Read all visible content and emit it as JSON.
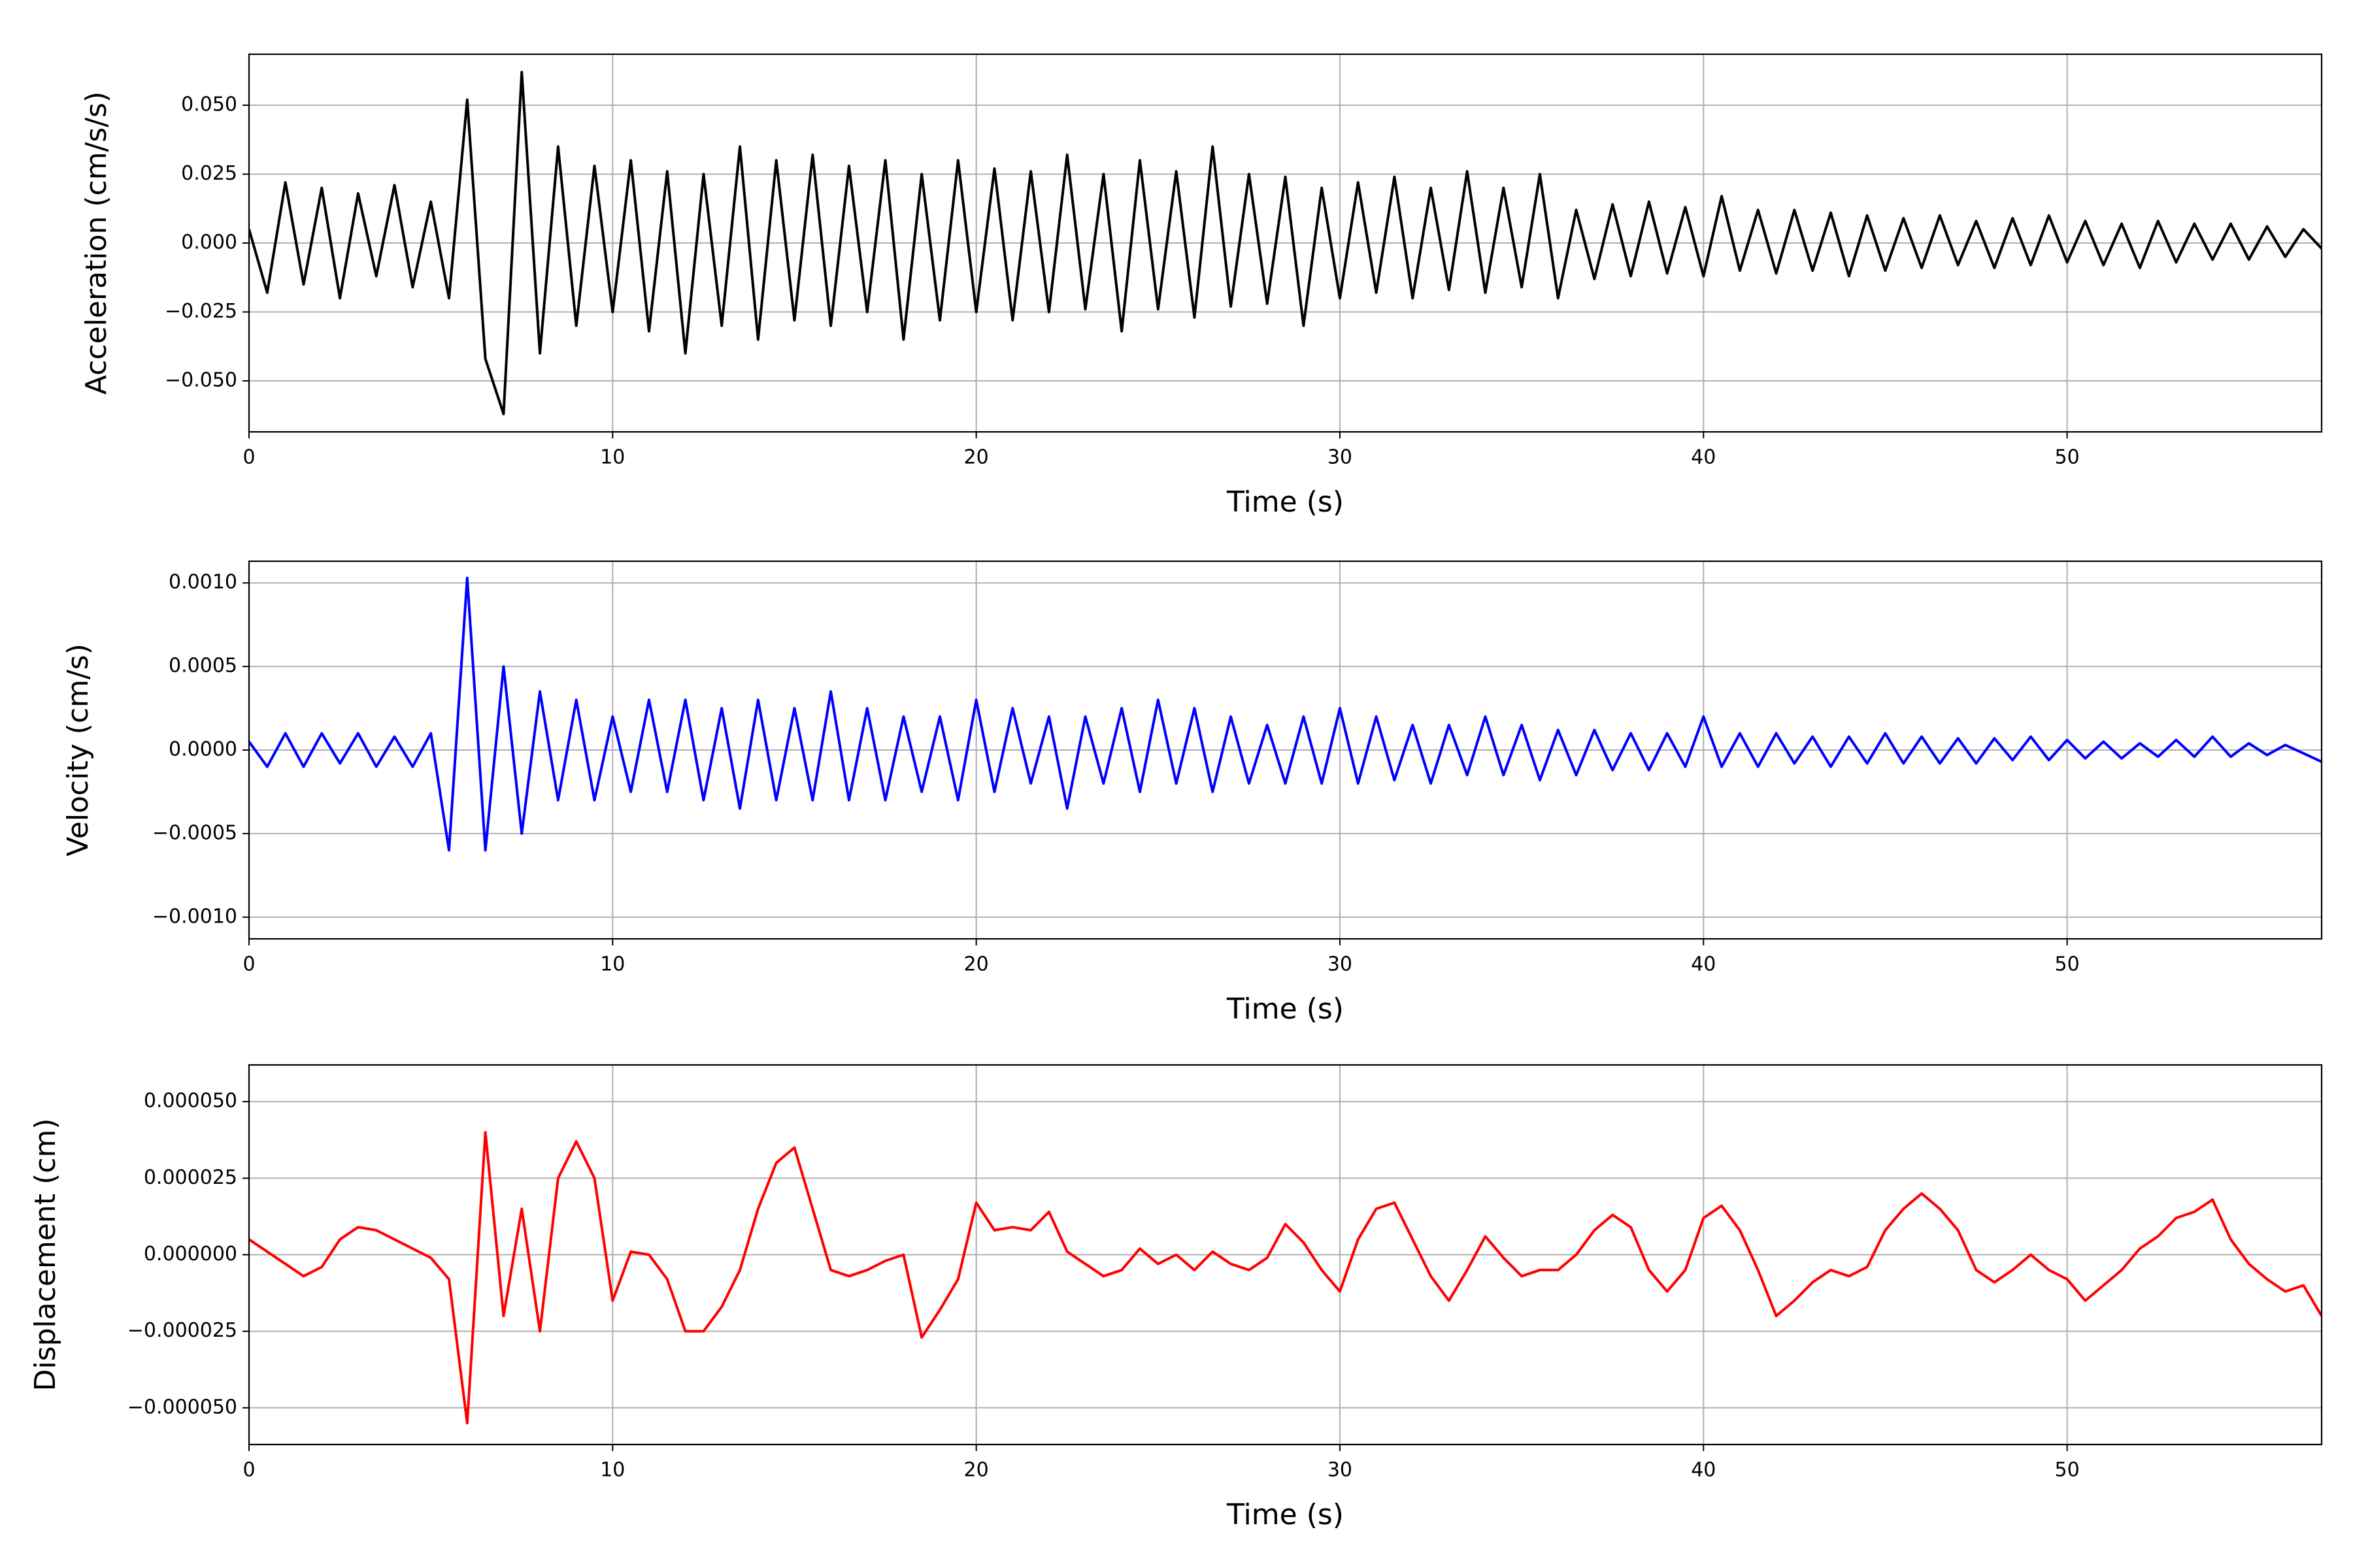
{
  "chart_data": [
    {
      "type": "line",
      "xlabel": "Time (s)",
      "ylabel": "Acceleration (cm/s/s)",
      "color": "#000000",
      "grid": true,
      "xlim": [
        0,
        57
      ],
      "ylim": [
        -0.0685,
        0.0685
      ],
      "xticks": [
        0,
        10,
        20,
        30,
        40,
        50
      ],
      "yticks": [
        {
          "value": -0.05,
          "label": "−0.050"
        },
        {
          "value": -0.025,
          "label": "−0.025"
        },
        {
          "value": 0,
          "label": "0.000"
        },
        {
          "value": 0.025,
          "label": "0.025"
        },
        {
          "value": 0.05,
          "label": "0.050"
        }
      ],
      "x": [
        0,
        0.5,
        1,
        1.5,
        2,
        2.5,
        3,
        3.5,
        4,
        4.5,
        5,
        5.5,
        6,
        6.5,
        7,
        7.5,
        8,
        8.5,
        9,
        9.5,
        10,
        10.5,
        11,
        11.5,
        12,
        12.5,
        13,
        13.5,
        14,
        14.5,
        15,
        15.5,
        16,
        16.5,
        17,
        17.5,
        18,
        18.5,
        19,
        19.5,
        20,
        20.5,
        21,
        21.5,
        22,
        22.5,
        23,
        23.5,
        24,
        24.5,
        25,
        25.5,
        26,
        26.5,
        27,
        27.5,
        28,
        28.5,
        29,
        29.5,
        30,
        30.5,
        31,
        31.5,
        32,
        32.5,
        33,
        33.5,
        34,
        34.5,
        35,
        35.5,
        36,
        36.5,
        37,
        37.5,
        38,
        38.5,
        39,
        39.5,
        40,
        40.5,
        41,
        41.5,
        42,
        42.5,
        43,
        43.5,
        44,
        44.5,
        45,
        45.5,
        46,
        46.5,
        47,
        47.5,
        48,
        48.5,
        49,
        49.5,
        50,
        50.5,
        51,
        51.5,
        52,
        52.5,
        53,
        53.5,
        54,
        54.5,
        55,
        55.5,
        56,
        56.5,
        57
      ],
      "values": [
        0.005,
        -0.018,
        0.022,
        -0.015,
        0.02,
        -0.02,
        0.018,
        -0.012,
        0.021,
        -0.016,
        0.015,
        -0.02,
        0.052,
        -0.042,
        -0.062,
        0.062,
        -0.04,
        0.035,
        -0.03,
        0.028,
        -0.025,
        0.03,
        -0.032,
        0.026,
        -0.04,
        0.025,
        -0.03,
        0.035,
        -0.035,
        0.03,
        -0.028,
        0.032,
        -0.03,
        0.028,
        -0.025,
        0.03,
        -0.035,
        0.025,
        -0.028,
        0.03,
        -0.025,
        0.027,
        -0.028,
        0.026,
        -0.025,
        0.032,
        -0.024,
        0.025,
        -0.032,
        0.03,
        -0.024,
        0.026,
        -0.027,
        0.035,
        -0.023,
        0.025,
        -0.022,
        0.024,
        -0.03,
        0.02,
        -0.02,
        0.022,
        -0.018,
        0.024,
        -0.02,
        0.02,
        -0.017,
        0.026,
        -0.018,
        0.02,
        -0.016,
        0.025,
        -0.02,
        0.012,
        -0.013,
        0.014,
        -0.012,
        0.015,
        -0.011,
        0.013,
        -0.012,
        0.017,
        -0.01,
        0.012,
        -0.011,
        0.012,
        -0.01,
        0.011,
        -0.012,
        0.01,
        -0.01,
        0.009,
        -0.009,
        0.01,
        -0.008,
        0.008,
        -0.009,
        0.009,
        -0.008,
        0.01,
        -0.007,
        0.008,
        -0.008,
        0.007,
        -0.009,
        0.008,
        -0.007,
        0.007,
        -0.006,
        0.007,
        -0.006,
        0.006,
        -0.005,
        0.005,
        -0.002
      ]
    },
    {
      "type": "line",
      "xlabel": "Time (s)",
      "ylabel": "Velocity (cm/s)",
      "color": "#0000ff",
      "grid": true,
      "xlim": [
        0,
        57
      ],
      "ylim": [
        -0.00113,
        0.00113
      ],
      "xticks": [
        0,
        10,
        20,
        30,
        40,
        50
      ],
      "yticks": [
        {
          "value": -0.001,
          "label": "−0.0010"
        },
        {
          "value": -0.0005,
          "label": "−0.0005"
        },
        {
          "value": 0,
          "label": "0.0000"
        },
        {
          "value": 0.0005,
          "label": "0.0005"
        },
        {
          "value": 0.001,
          "label": "0.0010"
        }
      ],
      "x": [
        0,
        0.5,
        1,
        1.5,
        2,
        2.5,
        3,
        3.5,
        4,
        4.5,
        5,
        5.5,
        6,
        6.5,
        7,
        7.5,
        8,
        8.5,
        9,
        9.5,
        10,
        10.5,
        11,
        11.5,
        12,
        12.5,
        13,
        13.5,
        14,
        14.5,
        15,
        15.5,
        16,
        16.5,
        17,
        17.5,
        18,
        18.5,
        19,
        19.5,
        20,
        20.5,
        21,
        21.5,
        22,
        22.5,
        23,
        23.5,
        24,
        24.5,
        25,
        25.5,
        26,
        26.5,
        27,
        27.5,
        28,
        28.5,
        29,
        29.5,
        30,
        30.5,
        31,
        31.5,
        32,
        32.5,
        33,
        33.5,
        34,
        34.5,
        35,
        35.5,
        36,
        36.5,
        37,
        37.5,
        38,
        38.5,
        39,
        39.5,
        40,
        40.5,
        41,
        41.5,
        42,
        42.5,
        43,
        43.5,
        44,
        44.5,
        45,
        45.5,
        46,
        46.5,
        47,
        47.5,
        48,
        48.5,
        49,
        49.5,
        50,
        50.5,
        51,
        51.5,
        52,
        52.5,
        53,
        53.5,
        54,
        54.5,
        55,
        55.5,
        56,
        56.5,
        57
      ],
      "values": [
        5e-05,
        -0.0001,
        0.0001,
        -0.0001,
        0.0001,
        -8e-05,
        0.0001,
        -0.0001,
        8e-05,
        -0.0001,
        0.0001,
        -0.0006,
        0.00103,
        -0.0006,
        0.0005,
        -0.0005,
        0.00035,
        -0.0003,
        0.0003,
        -0.0003,
        0.0002,
        -0.00025,
        0.0003,
        -0.00025,
        0.0003,
        -0.0003,
        0.00025,
        -0.00035,
        0.0003,
        -0.0003,
        0.00025,
        -0.0003,
        0.00035,
        -0.0003,
        0.00025,
        -0.0003,
        0.0002,
        -0.00025,
        0.0002,
        -0.0003,
        0.0003,
        -0.00025,
        0.00025,
        -0.0002,
        0.0002,
        -0.00035,
        0.0002,
        -0.0002,
        0.00025,
        -0.00025,
        0.0003,
        -0.0002,
        0.00025,
        -0.00025,
        0.0002,
        -0.0002,
        0.00015,
        -0.0002,
        0.0002,
        -0.0002,
        0.00025,
        -0.0002,
        0.0002,
        -0.00018,
        0.00015,
        -0.0002,
        0.00015,
        -0.00015,
        0.0002,
        -0.00015,
        0.00015,
        -0.00018,
        0.00012,
        -0.00015,
        0.00012,
        -0.00012,
        0.0001,
        -0.00012,
        0.0001,
        -0.0001,
        0.0002,
        -0.0001,
        0.0001,
        -0.0001,
        0.0001,
        -8e-05,
        8e-05,
        -0.0001,
        8e-05,
        -8e-05,
        0.0001,
        -8e-05,
        8e-05,
        -8e-05,
        7e-05,
        -8e-05,
        7e-05,
        -6e-05,
        8e-05,
        -6e-05,
        6e-05,
        -5e-05,
        5e-05,
        -5e-05,
        4e-05,
        -4e-05,
        6e-05,
        -4e-05,
        8e-05,
        -4e-05,
        4e-05,
        -3e-05,
        3e-05,
        -2e-05,
        -7e-05
      ]
    },
    {
      "type": "line",
      "xlabel": "Time (s)",
      "ylabel": "Displacement (cm)",
      "color": "#ff0000",
      "grid": true,
      "xlim": [
        0,
        57
      ],
      "ylim": [
        -6.2e-05,
        6.2e-05
      ],
      "xticks": [
        0,
        10,
        20,
        30,
        40,
        50
      ],
      "yticks": [
        {
          "value": -5e-05,
          "label": "−0.000050"
        },
        {
          "value": -2.5e-05,
          "label": "−0.000025"
        },
        {
          "value": 0,
          "label": "0.000000"
        },
        {
          "value": 2.5e-05,
          "label": "0.000025"
        },
        {
          "value": 5e-05,
          "label": "0.000050"
        }
      ],
      "x": [
        0,
        0.5,
        1,
        1.5,
        2,
        2.5,
        3,
        3.5,
        4,
        4.5,
        5,
        5.5,
        6,
        6.5,
        7,
        7.5,
        8,
        8.5,
        9,
        9.5,
        10,
        10.5,
        11,
        11.5,
        12,
        12.5,
        13,
        13.5,
        14,
        14.5,
        15,
        15.5,
        16,
        16.5,
        17,
        17.5,
        18,
        18.5,
        19,
        19.5,
        20,
        20.5,
        21,
        21.5,
        22,
        22.5,
        23,
        23.5,
        24,
        24.5,
        25,
        25.5,
        26,
        26.5,
        27,
        27.5,
        28,
        28.5,
        29,
        29.5,
        30,
        30.5,
        31,
        31.5,
        32,
        32.5,
        33,
        33.5,
        34,
        34.5,
        35,
        35.5,
        36,
        36.5,
        37,
        37.5,
        38,
        38.5,
        39,
        39.5,
        40,
        40.5,
        41,
        41.5,
        42,
        42.5,
        43,
        43.5,
        44,
        44.5,
        45,
        45.5,
        46,
        46.5,
        47,
        47.5,
        48,
        48.5,
        49,
        49.5,
        50,
        50.5,
        51,
        51.5,
        52,
        52.5,
        53,
        53.5,
        54,
        54.5,
        55,
        55.5,
        56,
        56.5,
        57
      ],
      "values": [
        5e-06,
        1e-06,
        -3e-06,
        -7e-06,
        -4e-06,
        5e-06,
        9e-06,
        8e-06,
        5e-06,
        2e-06,
        -1e-06,
        -8e-06,
        -5.5e-05,
        4e-05,
        -2e-05,
        1.5e-05,
        -2.5e-05,
        2.5e-05,
        3.7e-05,
        2.5e-05,
        -1.5e-05,
        1e-06,
        0,
        -8e-06,
        -2.5e-05,
        -2.5e-05,
        -1.7e-05,
        -5e-06,
        1.5e-05,
        3e-05,
        3.5e-05,
        1.5e-05,
        -5e-06,
        -7e-06,
        -5e-06,
        -2e-06,
        0,
        -2.7e-05,
        -1.8e-05,
        -8e-06,
        1.7e-05,
        8e-06,
        9e-06,
        8e-06,
        1.4e-05,
        1e-06,
        -3e-06,
        -7e-06,
        -5e-06,
        2e-06,
        -3e-06,
        0,
        -5e-06,
        1e-06,
        -3e-06,
        -5e-06,
        -1e-06,
        1e-05,
        4e-06,
        -5e-06,
        -1.2e-05,
        5e-06,
        1.5e-05,
        1.7e-05,
        5e-06,
        -7e-06,
        -1.5e-05,
        -5e-06,
        6e-06,
        -1e-06,
        -7e-06,
        -5e-06,
        -5e-06,
        0,
        8e-06,
        1.3e-05,
        9e-06,
        -5e-06,
        -1.2e-05,
        -5e-06,
        1.2e-05,
        1.6e-05,
        8e-06,
        -5e-06,
        -2e-05,
        -1.5e-05,
        -9e-06,
        -5e-06,
        -7e-06,
        -4e-06,
        8e-06,
        1.5e-05,
        2e-05,
        1.5e-05,
        8e-06,
        -5e-06,
        -9e-06,
        -5e-06,
        0,
        -5e-06,
        -8e-06,
        -1.5e-05,
        -1e-05,
        -5e-06,
        2e-06,
        6e-06,
        1.2e-05,
        1.4e-05,
        1.8e-05,
        5e-06,
        -3e-06,
        -8e-06,
        -1.2e-05,
        -1e-05,
        -2e-05
      ]
    }
  ]
}
